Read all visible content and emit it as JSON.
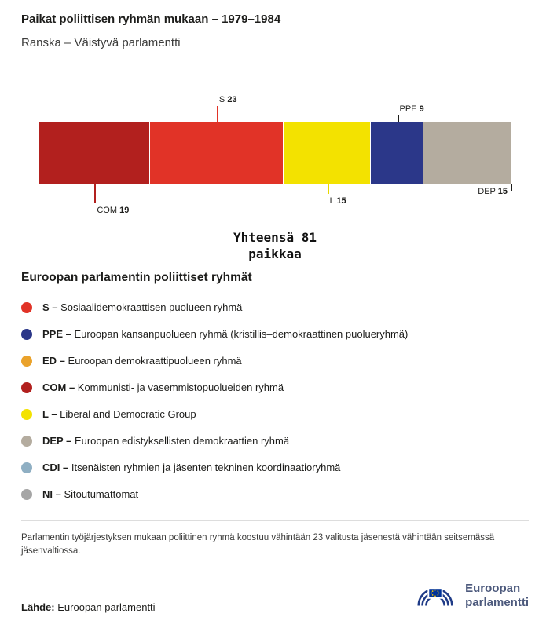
{
  "header": {
    "title": "Paikat poliittisen ryhmän mukaan – 1979–1984",
    "subtitle": "Ranska – Väistyvä parlamentti"
  },
  "chart_data": {
    "type": "bar",
    "subtype": "horizontal_stacked",
    "title": "Paikat poliittisen ryhmän mukaan – 1979–1984",
    "subtitle": "Ranska – Väistyvä parlamentti",
    "total": 81,
    "total_label": "Yhteensä 81\npaikkaa",
    "categories": [
      "COM",
      "S",
      "L",
      "PPE",
      "DEP"
    ],
    "values": [
      19,
      23,
      15,
      9,
      15
    ],
    "segments": [
      {
        "group": "COM",
        "seats": 19,
        "color": "#b2201e",
        "callout": {
          "side": "below",
          "line": 24,
          "line_color": "#b2201e",
          "at": "middle",
          "label_side": "right"
        }
      },
      {
        "group": "S",
        "seats": 23,
        "color": "#e13327",
        "callout": {
          "side": "above",
          "line": 20,
          "line_color": "#e13327",
          "at": "middle",
          "label_side": "right"
        }
      },
      {
        "group": "L",
        "seats": 15,
        "color": "#f3e200",
        "callout": {
          "side": "below",
          "line": 12,
          "line_color": "#e8d800",
          "at": "middle",
          "label_side": "right"
        }
      },
      {
        "group": "PPE",
        "seats": 9,
        "color": "#2b3789",
        "callout": {
          "side": "above",
          "line": 8,
          "line_color": "#1d1d1b",
          "at": "middle",
          "label_side": "right"
        }
      },
      {
        "group": "DEP",
        "seats": 15,
        "color": "#b4ac9f",
        "callout": {
          "side": "below",
          "line": 8,
          "line_color": "#1d1d1b",
          "at": "right",
          "label_side": "left"
        }
      }
    ]
  },
  "legend": {
    "title": "Euroopan parlamentin poliittiset ryhmät",
    "items": [
      {
        "abbr": "S –",
        "desc": "Sosiaalidemokraattisen puolueen ryhmä",
        "color": "#e13327"
      },
      {
        "abbr": "PPE –",
        "desc": "Euroopan kansanpuolueen ryhmä (kristillis–demokraattinen puolueryhmä)",
        "color": "#2b3789"
      },
      {
        "abbr": "ED –",
        "desc": "Euroopan demokraattipuolueen ryhmä",
        "color": "#eaa22b"
      },
      {
        "abbr": "COM –",
        "desc": "Kommunisti- ja vasemmistopuolueiden ryhmä",
        "color": "#b2201e"
      },
      {
        "abbr": "L –",
        "desc": "Liberal and Democratic Group",
        "color": "#f3e200"
      },
      {
        "abbr": "DEP –",
        "desc": "Euroopan edistyksellisten demokraattien ryhmä",
        "color": "#b4ac9f"
      },
      {
        "abbr": "CDI –",
        "desc": "Itsenäisten ryhmien ja jäsenten tekninen koordinaatioryhmä",
        "color": "#8fafc3"
      },
      {
        "abbr": "NI –",
        "desc": "Sitoutumattomat",
        "color": "#a5a5a5"
      }
    ]
  },
  "footnote": "Parlamentin työjärjestyksen mukaan poliittinen ryhmä koostuu vähintään 23 valitusta jäsenestä vähintään seitsemässä jäsenvaltiossa.",
  "source": {
    "label": "Lähde:",
    "text": "Euroopan parlamentti"
  },
  "logo": {
    "line1": "Euroopan",
    "line2": "parlamentti"
  }
}
